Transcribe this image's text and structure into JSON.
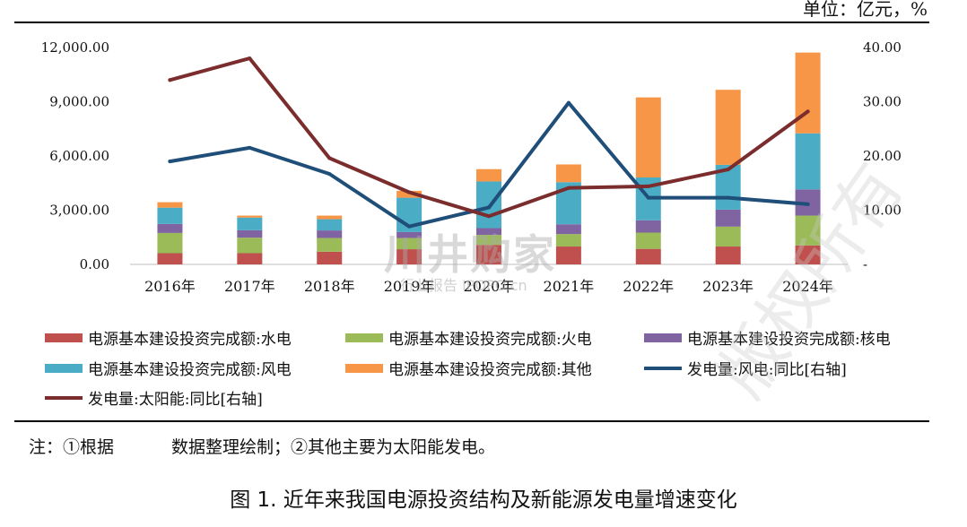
{
  "unit_label": "单位：亿元，%",
  "note": {
    "part1": "注：①根据",
    "part2": "数据整理绘制；②其他主要为太阳能发电。"
  },
  "figure_title": "图 1. 近年来我国电源投资结构及新能源发电量增速变化",
  "watermark": {
    "logo": "川井购家",
    "sub": "行业报告 IPOPO.cn",
    "copyright": "版权所有"
  },
  "colors": {
    "hydro": "#c0504d",
    "thermal": "#9bbb59",
    "nuclear": "#8064a2",
    "wind": "#4bacc6",
    "other": "#f79646",
    "wind_growth": "#1f4e79",
    "solar_growth": "#7b2c2c",
    "axis": "#bfbfbf"
  },
  "chart_data": {
    "type": "bar",
    "stacked": true,
    "categories": [
      "2016年",
      "2017年",
      "2018年",
      "2019年",
      "2020年",
      "2021年",
      "2022年",
      "2023年",
      "2024年"
    ],
    "y_left": {
      "ylim": [
        0,
        12000
      ],
      "ticks": [
        "0.00",
        "3,000.00",
        "6,000.00",
        "9,000.00",
        "12,000.00"
      ],
      "tick_values": [
        0,
        3000,
        6000,
        9000,
        12000
      ]
    },
    "y_right": {
      "ylim": [
        0,
        40
      ],
      "ticks": [
        "-",
        "10.00",
        "20.00",
        "30.00",
        "40.00"
      ],
      "tick_values": [
        0,
        10,
        20,
        30,
        40
      ]
    },
    "series": [
      {
        "name": "电源基本建设投资完成额:水电",
        "key": "hydro",
        "axis": "left",
        "kind": "bar",
        "values": [
          620,
          620,
          700,
          840,
          1080,
          990,
          860,
          990,
          1050
        ]
      },
      {
        "name": "电源基本建设投资完成额:火电",
        "key": "thermal",
        "axis": "left",
        "kind": "bar",
        "values": [
          1120,
          860,
          760,
          620,
          550,
          690,
          900,
          1100,
          1650
        ]
      },
      {
        "name": "电源基本建设投资完成额:核电",
        "key": "nuclear",
        "axis": "left",
        "kind": "bar",
        "values": [
          500,
          410,
          420,
          330,
          380,
          540,
          680,
          940,
          1450
        ]
      },
      {
        "name": "电源基本建设投资完成额:风电",
        "key": "wind",
        "axis": "left",
        "kind": "bar",
        "values": [
          900,
          700,
          620,
          1900,
          2580,
          2330,
          2370,
          2480,
          3100
        ]
      },
      {
        "name": "电源基本建设投资完成额:其他",
        "key": "other",
        "axis": "left",
        "kind": "bar",
        "values": [
          300,
          110,
          200,
          380,
          680,
          980,
          4430,
          4150,
          4470
        ]
      },
      {
        "name": "发电量:风电:同比[右轴]",
        "key": "wind_growth",
        "axis": "right",
        "kind": "line",
        "values": [
          19.0,
          21.5,
          16.7,
          7.0,
          10.5,
          29.8,
          12.3,
          12.3,
          11.1
        ]
      },
      {
        "name": "发电量:太阳能:同比[右轴]",
        "key": "solar_growth",
        "axis": "right",
        "kind": "line",
        "values": [
          34.0,
          38.0,
          19.6,
          13.3,
          8.9,
          14.1,
          14.4,
          17.5,
          28.2
        ]
      }
    ],
    "legend_rows": [
      [
        0,
        1,
        2
      ],
      [
        3,
        4,
        5
      ],
      [
        6
      ]
    ],
    "legend_placement": "bottom"
  }
}
